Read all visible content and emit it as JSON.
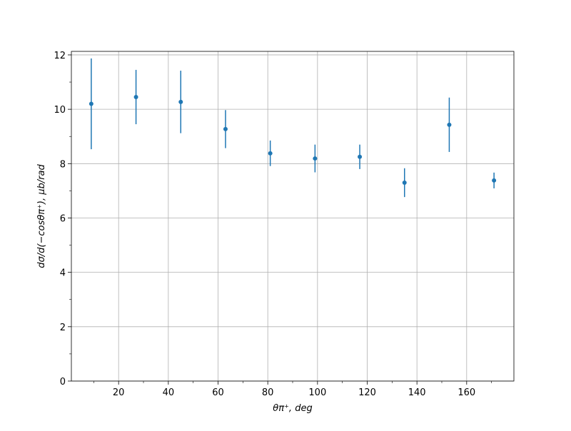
{
  "chart_data": {
    "type": "errorbar",
    "xlabel": "θπ⁺, deg",
    "ylabel": "dσ/d(−cosθπ⁺), μb/rad",
    "x": [
      9,
      27,
      45,
      63,
      81,
      99,
      117,
      135,
      153,
      171
    ],
    "series": [
      {
        "color": "#1f77b4",
        "values": [
          10.2,
          10.45,
          10.27,
          9.27,
          8.38,
          8.19,
          8.25,
          7.3,
          9.43,
          7.38
        ],
        "errors": [
          1.67,
          1.0,
          1.15,
          0.7,
          0.47,
          0.51,
          0.45,
          0.53,
          1.0,
          0.29
        ]
      }
    ],
    "xlim": [
      1,
      179
    ],
    "ylim": [
      0,
      12.13
    ],
    "xticks": [
      20,
      40,
      60,
      80,
      100,
      120,
      140,
      160
    ],
    "yticks": [
      0,
      2,
      4,
      6,
      8,
      10,
      12
    ],
    "xminorticks": [
      10,
      30,
      50,
      70,
      90,
      110,
      130,
      150,
      170
    ],
    "yminorticks": [
      1,
      3,
      5,
      7,
      9,
      11
    ],
    "grid": true
  }
}
